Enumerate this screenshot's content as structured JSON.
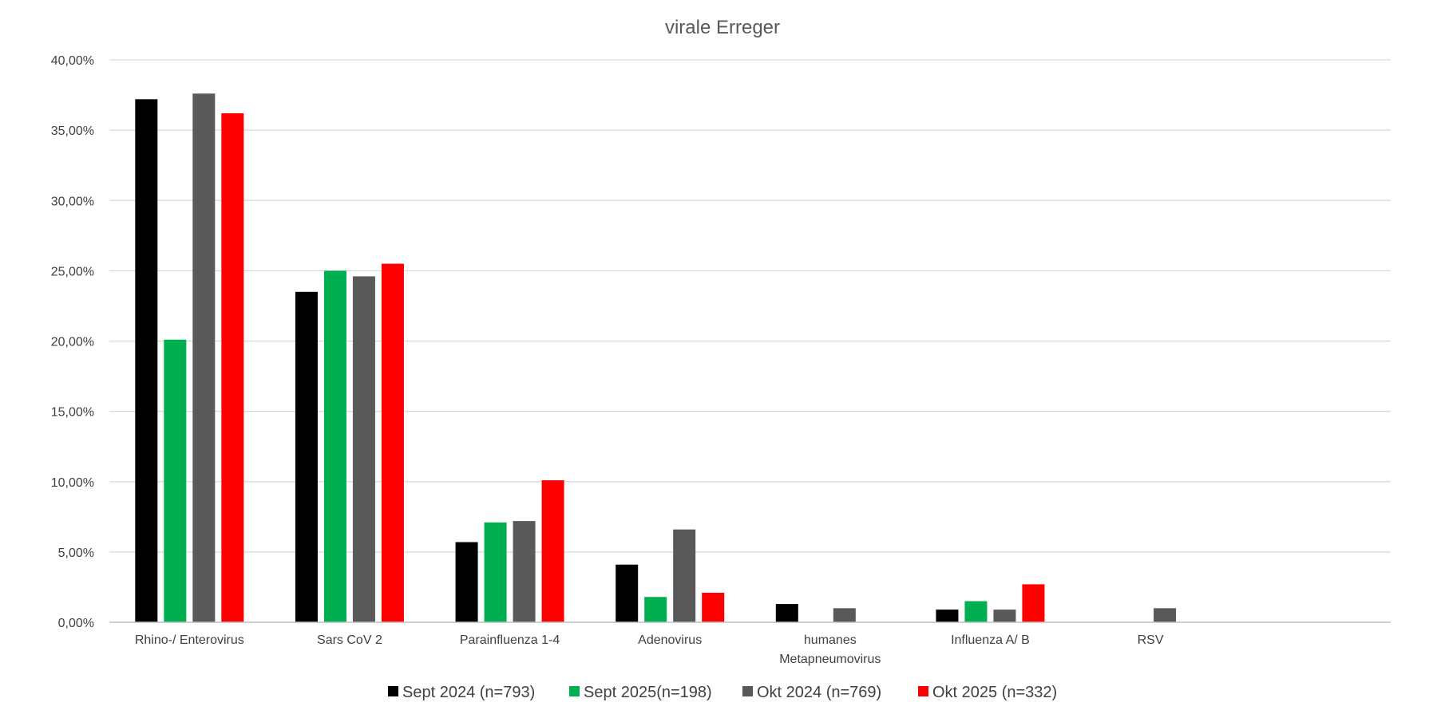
{
  "chart_data": {
    "type": "bar",
    "title": "virale Erreger",
    "xlabel": "",
    "ylabel": "",
    "ylim": [
      0,
      0.4
    ],
    "y_ticks": [
      0,
      0.05,
      0.1,
      0.15,
      0.2,
      0.25,
      0.3,
      0.35,
      0.4
    ],
    "y_tick_labels": [
      "0,00%",
      "5,00%",
      "10,00%",
      "15,00%",
      "20,00%",
      "25,00%",
      "30,00%",
      "35,00%",
      "40,00%"
    ],
    "grid": true,
    "legend_position": "bottom",
    "categories": [
      [
        "Rhino-/ Enterovirus"
      ],
      [
        "Sars CoV 2"
      ],
      [
        "Parainfluenza 1-4"
      ],
      [
        "Adenovirus"
      ],
      [
        "humanes",
        "Metapneumovirus"
      ],
      [
        "Influenza A/ B"
      ],
      [
        "RSV"
      ],
      [
        ""
      ]
    ],
    "series": [
      {
        "name": "Sept 2024 (n=793)",
        "color": "#000000",
        "values": [
          0.372,
          0.235,
          0.057,
          0.041,
          0.013,
          0.009,
          null,
          null
        ]
      },
      {
        "name": "Sept 2025(n=198)",
        "color": "#00b050",
        "values": [
          0.201,
          0.25,
          0.071,
          0.018,
          null,
          0.015,
          null,
          null
        ]
      },
      {
        "name": "Okt 2024 (n=769)",
        "color": "#595959",
        "values": [
          0.376,
          0.246,
          0.072,
          0.066,
          0.01,
          0.009,
          0.01,
          null
        ]
      },
      {
        "name": "Okt 2025 (n=332)",
        "color": "#ff0000",
        "values": [
          0.362,
          0.255,
          0.101,
          0.021,
          null,
          0.027,
          null,
          null
        ]
      }
    ]
  }
}
